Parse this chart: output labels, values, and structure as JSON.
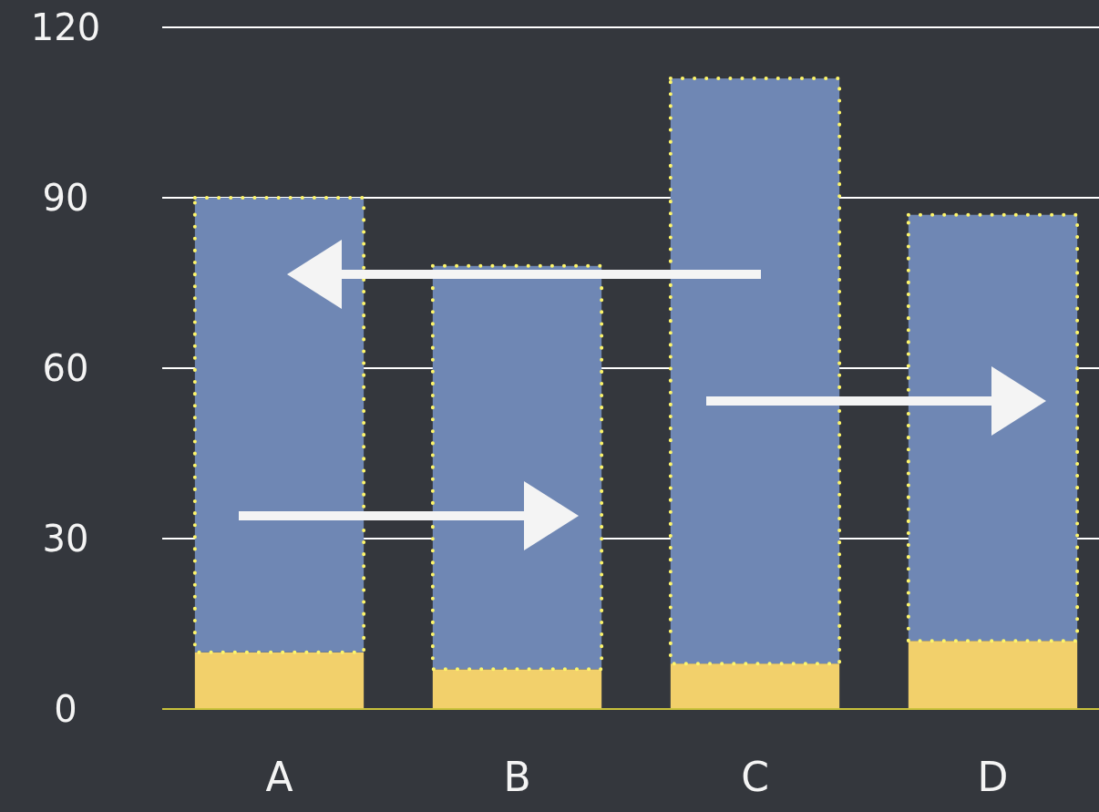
{
  "chart_data": {
    "type": "bar",
    "stacked": true,
    "categories": [
      "A",
      "B",
      "C",
      "D"
    ],
    "series": [
      {
        "color": "#f2d06b",
        "values": [
          10,
          7,
          8,
          12
        ]
      },
      {
        "color": "#6f87b4",
        "values": [
          80,
          71,
          103,
          75
        ]
      }
    ],
    "ylim": [
      0,
      120
    ],
    "yticks": [
      0,
      30,
      60,
      90,
      120
    ],
    "grid": "y"
  }
}
